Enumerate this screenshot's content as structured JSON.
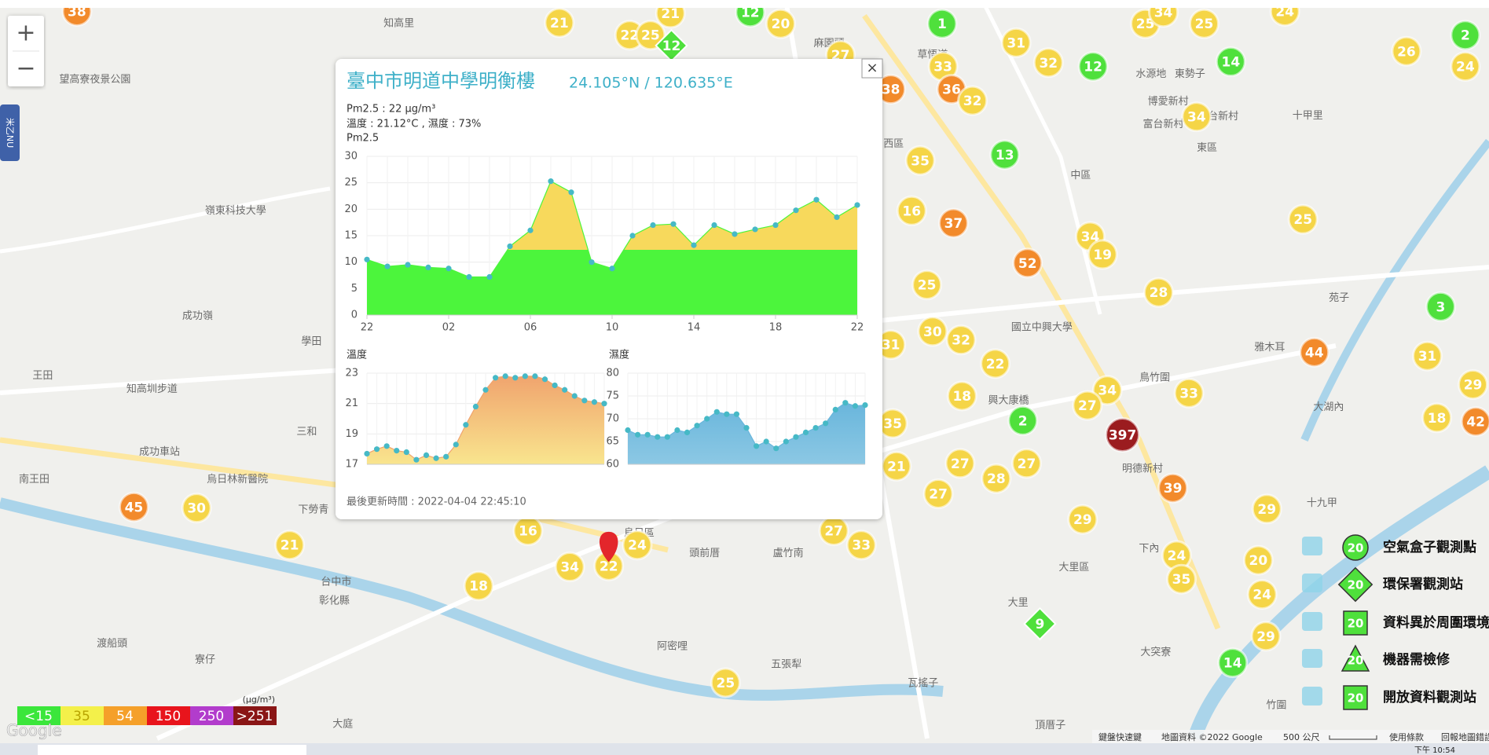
{
  "map": {
    "zoom_in": "+",
    "zoom_out": "−",
    "side_tab": "米乙NU",
    "logo": "Google",
    "labels": [
      "知高里",
      "麻園頭",
      "草悟道",
      "水源地",
      "東勢子",
      "博愛新村",
      "富台新村",
      "台新村",
      "十甲里",
      "中區",
      "東區",
      "西區",
      "望高寮夜景公園",
      "嶺東科技大學",
      "成功嶺",
      "學田",
      "王田",
      "知高圳步道",
      "三和",
      "成功車站",
      "南王田",
      "烏日林新醫院",
      "下勞青",
      "台中市",
      "彰化縣",
      "渡船頭",
      "寮仔",
      "大庭",
      "頭前厝",
      "盧竹南",
      "阿密哩",
      "五張犁",
      "瓦搖子",
      "大里區",
      "頂厝子",
      "竹圍",
      "大突寮",
      "明德新村",
      "鳥竹圍",
      "雅木耳",
      "大湖內",
      "十九甲",
      "國立中興大學",
      "興大康橋",
      "大里",
      "下內",
      "苑子",
      "烏日區"
    ],
    "markers": [
      {
        "value": 38,
        "color": "#f28a2b",
        "shape": "circle"
      },
      {
        "value": 21,
        "color": "#f5d547",
        "shape": "circle"
      },
      {
        "value": 21,
        "color": "#f5d547",
        "shape": "circle"
      },
      {
        "value": 22,
        "color": "#f5d547",
        "shape": "circle"
      },
      {
        "value": 25,
        "color": "#f5d547",
        "shape": "circle"
      },
      {
        "value": 12,
        "color": "#4fe03c",
        "shape": "diamond"
      },
      {
        "value": 12,
        "color": "#4fe03c",
        "shape": "circle"
      },
      {
        "value": 20,
        "color": "#f5d547",
        "shape": "circle"
      },
      {
        "value": 27,
        "color": "#f5d547",
        "shape": "circle"
      },
      {
        "value": 38,
        "color": "#f28a2b",
        "shape": "circle"
      },
      {
        "value": 1,
        "color": "#4fe03c",
        "shape": "circle"
      },
      {
        "value": 31,
        "color": "#f5d547",
        "shape": "circle"
      },
      {
        "value": 32,
        "color": "#f5d547",
        "shape": "circle"
      },
      {
        "value": 12,
        "color": "#4fe03c",
        "shape": "circle"
      },
      {
        "value": 33,
        "color": "#f5d547",
        "shape": "circle"
      },
      {
        "value": 36,
        "color": "#f28a2b",
        "shape": "circle"
      },
      {
        "value": 32,
        "color": "#f5d547",
        "shape": "circle"
      },
      {
        "value": 25,
        "color": "#f5d547",
        "shape": "circle"
      },
      {
        "value": 34,
        "color": "#f5d547",
        "shape": "circle"
      },
      {
        "value": 25,
        "color": "#f5d547",
        "shape": "circle"
      },
      {
        "value": 14,
        "color": "#4fe03c",
        "shape": "circle"
      },
      {
        "value": 24,
        "color": "#f5d547",
        "shape": "circle"
      },
      {
        "value": 26,
        "color": "#f5d547",
        "shape": "circle"
      },
      {
        "value": 2,
        "color": "#4fe03c",
        "shape": "circle"
      },
      {
        "value": 24,
        "color": "#f5d547",
        "shape": "circle"
      },
      {
        "value": 34,
        "color": "#f5d547",
        "shape": "circle"
      },
      {
        "value": 13,
        "color": "#4fe03c",
        "shape": "circle"
      },
      {
        "value": 35,
        "color": "#f5d547",
        "shape": "circle"
      },
      {
        "value": 16,
        "color": "#f5d547",
        "shape": "circle"
      },
      {
        "value": 37,
        "color": "#f28a2b",
        "shape": "circle"
      },
      {
        "value": 34,
        "color": "#f5d547",
        "shape": "circle"
      },
      {
        "value": 19,
        "color": "#f5d547",
        "shape": "circle"
      },
      {
        "value": 25,
        "color": "#f5d547",
        "shape": "circle"
      },
      {
        "value": 52,
        "color": "#f28a2b",
        "shape": "circle"
      },
      {
        "value": 25,
        "color": "#f5d547",
        "shape": "circle"
      },
      {
        "value": 28,
        "color": "#f5d547",
        "shape": "circle"
      },
      {
        "value": 3,
        "color": "#4fe03c",
        "shape": "circle"
      },
      {
        "value": 30,
        "color": "#f5d547",
        "shape": "circle"
      },
      {
        "value": 32,
        "color": "#f5d547",
        "shape": "circle"
      },
      {
        "value": 31,
        "color": "#f5d547",
        "shape": "circle"
      },
      {
        "value": 22,
        "color": "#f5d547",
        "shape": "circle"
      },
      {
        "value": 44,
        "color": "#f28a2b",
        "shape": "circle"
      },
      {
        "value": 31,
        "color": "#f5d547",
        "shape": "circle"
      },
      {
        "value": 29,
        "color": "#f5d547",
        "shape": "circle"
      },
      {
        "value": 18,
        "color": "#f5d547",
        "shape": "circle"
      },
      {
        "value": 34,
        "color": "#f5d547",
        "shape": "circle"
      },
      {
        "value": 27,
        "color": "#f5d547",
        "shape": "circle"
      },
      {
        "value": 33,
        "color": "#f5d547",
        "shape": "circle"
      },
      {
        "value": 18,
        "color": "#f5d547",
        "shape": "circle"
      },
      {
        "value": 42,
        "color": "#f28a2b",
        "shape": "circle"
      },
      {
        "value": 2,
        "color": "#4fe03c",
        "shape": "circle"
      },
      {
        "value": 397,
        "color": "#9b1c1f",
        "shape": "circle"
      },
      {
        "value": 35,
        "color": "#f5d547",
        "shape": "circle"
      },
      {
        "value": 21,
        "color": "#f5d547",
        "shape": "circle"
      },
      {
        "value": 27,
        "color": "#f5d547",
        "shape": "circle"
      },
      {
        "value": 27,
        "color": "#f5d547",
        "shape": "circle"
      },
      {
        "value": 28,
        "color": "#f5d547",
        "shape": "circle"
      },
      {
        "value": 27,
        "color": "#f5d547",
        "shape": "circle"
      },
      {
        "value": 39,
        "color": "#f28a2b",
        "shape": "circle"
      },
      {
        "value": 29,
        "color": "#f5d547",
        "shape": "circle"
      },
      {
        "value": 29,
        "color": "#f5d547",
        "shape": "circle"
      },
      {
        "value": 45,
        "color": "#f28a2b",
        "shape": "circle"
      },
      {
        "value": 30,
        "color": "#f5d547",
        "shape": "circle"
      },
      {
        "value": 21,
        "color": "#f5d547",
        "shape": "circle"
      },
      {
        "value": 16,
        "color": "#f5d547",
        "shape": "circle"
      },
      {
        "value": 27,
        "color": "#f5d547",
        "shape": "circle"
      },
      {
        "value": 33,
        "color": "#f5d547",
        "shape": "circle"
      },
      {
        "value": 24,
        "color": "#f5d547",
        "shape": "circle"
      },
      {
        "value": 34,
        "color": "#f5d547",
        "shape": "circle"
      },
      {
        "value": 22,
        "color": "#f5d547",
        "shape": "circle"
      },
      {
        "value": 18,
        "color": "#f5d547",
        "shape": "circle"
      },
      {
        "value": 24,
        "color": "#f5d547",
        "shape": "circle"
      },
      {
        "value": 20,
        "color": "#f5d547",
        "shape": "circle"
      },
      {
        "value": 35,
        "color": "#f5d547",
        "shape": "circle"
      },
      {
        "value": 24,
        "color": "#f5d547",
        "shape": "circle"
      },
      {
        "value": 9,
        "color": "#4fe03c",
        "shape": "diamond"
      },
      {
        "value": 29,
        "color": "#f5d547",
        "shape": "circle"
      },
      {
        "value": 14,
        "color": "#4fe03c",
        "shape": "circle"
      },
      {
        "value": 25,
        "color": "#f5d547",
        "shape": "circle"
      }
    ]
  },
  "popup": {
    "close": "×",
    "title": "臺中市明道中學明衡樓",
    "coords": "24.105°N / 120.635°E",
    "pm25_reading": "Pm2.5 : 22 μg/m³",
    "weather": "溫度 : 21.12°C , 濕度 : 73%",
    "updated": "最後更新時間 : 2022-04-04 22:45:10"
  },
  "chart_data": [
    {
      "type": "area",
      "title": "Pm2.5",
      "x": [
        0,
        1,
        2,
        3,
        4,
        5,
        6,
        7,
        8,
        9,
        10,
        11,
        12,
        13,
        14,
        15,
        16,
        17,
        18,
        19,
        20,
        21,
        22,
        23,
        24
      ],
      "values": [
        10.5,
        9.2,
        9.5,
        9,
        8.8,
        7.2,
        7.2,
        13,
        16,
        25.3,
        23.2,
        10,
        8.8,
        15,
        17,
        17.2,
        13.2,
        17,
        15.3,
        16.2,
        17,
        19.8,
        21.8,
        18.5,
        20.8
      ],
      "colors": [
        "#4cf53c",
        "#f7d95c"
      ],
      "point_color": "#46b9c6",
      "xlim": [
        0,
        24
      ],
      "xticks": [
        {
          "value": 0,
          "label": "22"
        },
        {
          "value": 4,
          "label": "02"
        },
        {
          "value": 8,
          "label": "06"
        },
        {
          "value": 12,
          "label": "10"
        },
        {
          "value": 16,
          "label": "14"
        },
        {
          "value": 20,
          "label": "18"
        },
        {
          "value": 24,
          "label": "22"
        }
      ],
      "ylim": [
        0,
        30
      ],
      "yticks": [
        0,
        5,
        10,
        15,
        20,
        25,
        30
      ],
      "grid": true
    },
    {
      "type": "area",
      "title": "溫度",
      "values": [
        17.7,
        18,
        18.2,
        17.9,
        17.8,
        17.3,
        17.6,
        17.4,
        17.5,
        18.3,
        19.6,
        20.8,
        21.9,
        22.7,
        22.8,
        22.7,
        22.8,
        22.8,
        22.6,
        22.2,
        21.9,
        21.5,
        21.2,
        21.1,
        21
      ],
      "colors": [
        "#f0a46e",
        "#f9e58e"
      ],
      "point_color": "#46b9c6",
      "ylim": [
        17,
        23
      ],
      "yticks": [
        17,
        19,
        21,
        23
      ],
      "grid": true
    },
    {
      "type": "area",
      "title": "濕度",
      "values": [
        67.5,
        66.5,
        66.5,
        66,
        66,
        67.5,
        67,
        68.5,
        70,
        71.5,
        71,
        71,
        68,
        64,
        65,
        63.5,
        65,
        66,
        67,
        68,
        69,
        72,
        73.5,
        72.8,
        73
      ],
      "colors": [
        "#69b6dc",
        "#8cc8e4"
      ],
      "point_color": "#46b9c6",
      "ylim": [
        60,
        80
      ],
      "yticks": [
        60,
        65,
        70,
        75,
        80
      ],
      "grid": true
    }
  ],
  "legend": {
    "icon_value": 20,
    "items": [
      "空氣盒子觀測點",
      "環保署觀測站",
      "資料異於周圍環境",
      "機器需檢修",
      "開放資料觀測站"
    ]
  },
  "scale": {
    "unit": "(μg/m³)",
    "levels": [
      {
        "label": "<15",
        "color": "#3be63b"
      },
      {
        "label": "35",
        "color": "#f4f04a"
      },
      {
        "label": "54",
        "color": "#f5a02a"
      },
      {
        "label": "150",
        "color": "#e8141c"
      },
      {
        "label": "250",
        "color": "#b23ccc"
      },
      {
        "label": ">251",
        "color": "#8a1616"
      }
    ]
  },
  "footer": {
    "shortcuts": "鍵盤快速鍵",
    "map_data": "地圖資料 ©2022 Google",
    "distance": "500 公尺",
    "terms": "使用條款",
    "report": "回報地圖錯誤"
  },
  "taskbar": {
    "clock": "下午 10:54"
  }
}
